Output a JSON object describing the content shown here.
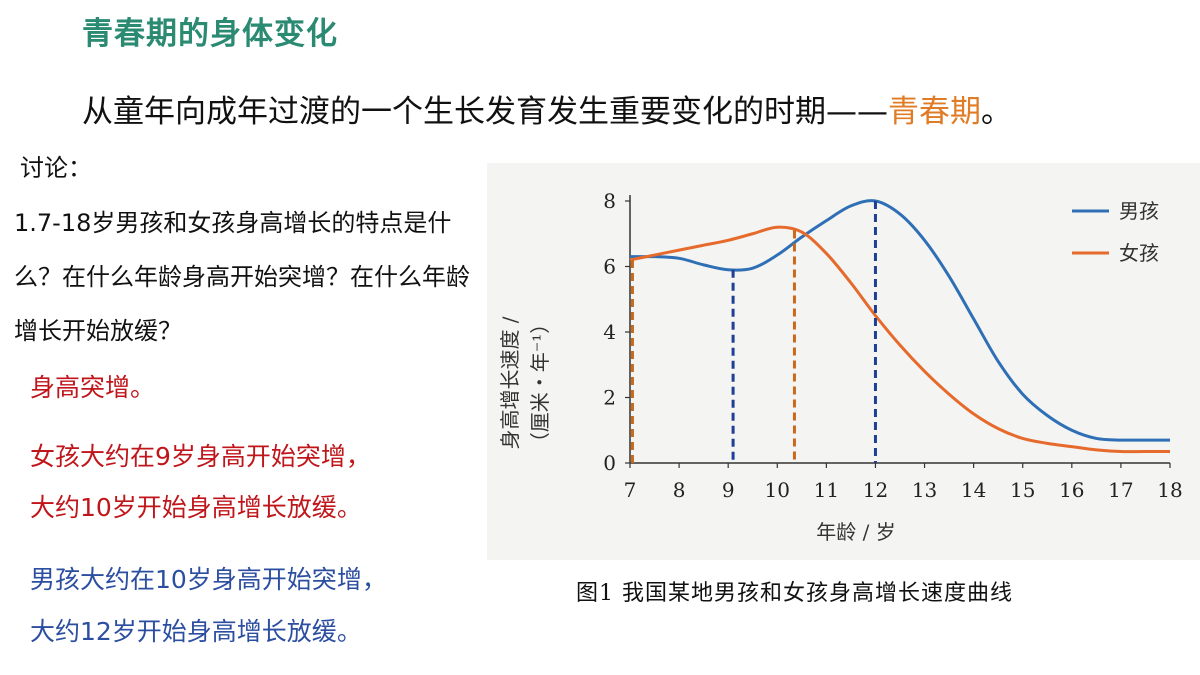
{
  "slide": {
    "title": "青春期的身体变化",
    "intro_main": "从童年向成年过渡的一个生长发育发生重要变化的时期——",
    "intro_highlight": "青春期",
    "intro_end": "。",
    "discussion_label": "讨论：",
    "question_1": "1.7-18岁男孩和女孩身高增长的特点是什么？在什么年龄身高开始突增？在什么年龄增长开始放缓？",
    "answer_1": "身高突增。",
    "answer_girl_1": "女孩大约在9岁身高开始突增，",
    "answer_girl_2": "大约10岁开始身高增长放缓。",
    "answer_boy_1": "男孩大约在10岁身高开始突增，",
    "answer_boy_2": "大约12岁开始身高增长放缓。",
    "caption": "图1 我国某地男孩和女孩身高增长速度曲线"
  },
  "chart_data": {
    "type": "line",
    "title": "",
    "xlabel": "年龄 / 岁",
    "ylabel": "身高增长速度 /",
    "ylabel_unit": "（厘米・年⁻¹）",
    "xlim": [
      7,
      18
    ],
    "ylim": [
      0,
      8
    ],
    "x_ticks": [
      7,
      8,
      9,
      10,
      11,
      12,
      13,
      14,
      15,
      16,
      17,
      18
    ],
    "y_ticks": [
      0,
      2,
      4,
      6,
      8
    ],
    "grid": false,
    "legend_position": "top-right",
    "series": [
      {
        "name": "男孩",
        "color": "#2f6fb5",
        "x": [
          7,
          7.5,
          8,
          8.5,
          9,
          9.5,
          10,
          10.5,
          11,
          11.5,
          12,
          12.5,
          13,
          13.5,
          14,
          14.5,
          15,
          15.5,
          16,
          16.5,
          17,
          17.5,
          18
        ],
        "y": [
          6.3,
          6.3,
          6.25,
          6.05,
          5.9,
          5.95,
          6.35,
          6.9,
          7.4,
          7.85,
          8.0,
          7.6,
          6.8,
          5.7,
          4.4,
          3.1,
          2.1,
          1.45,
          1.0,
          0.75,
          0.7,
          0.7,
          0.7
        ]
      },
      {
        "name": "女孩",
        "color": "#e56a2b",
        "x": [
          7,
          7.5,
          8,
          8.5,
          9,
          9.5,
          10,
          10.5,
          11,
          11.5,
          12,
          12.5,
          13,
          13.5,
          14,
          14.5,
          15,
          15.5,
          16,
          16.5,
          17,
          17.5,
          18
        ],
        "y": [
          6.2,
          6.35,
          6.5,
          6.65,
          6.8,
          7.0,
          7.2,
          7.05,
          6.4,
          5.5,
          4.5,
          3.6,
          2.8,
          2.1,
          1.5,
          1.05,
          0.75,
          0.6,
          0.5,
          0.4,
          0.35,
          0.35,
          0.35
        ]
      }
    ],
    "reference_lines": [
      {
        "series": "女孩",
        "color": "#c96a1a",
        "x": 7.05,
        "y": 6.2
      },
      {
        "series": "男孩",
        "color": "#1f3f96",
        "x": 9.1,
        "y": 5.9
      },
      {
        "series": "女孩",
        "color": "#c96a1a",
        "x": 10.35,
        "y": 7.1
      },
      {
        "series": "男孩",
        "color": "#1f3f96",
        "x": 12.0,
        "y": 8.0
      }
    ]
  }
}
